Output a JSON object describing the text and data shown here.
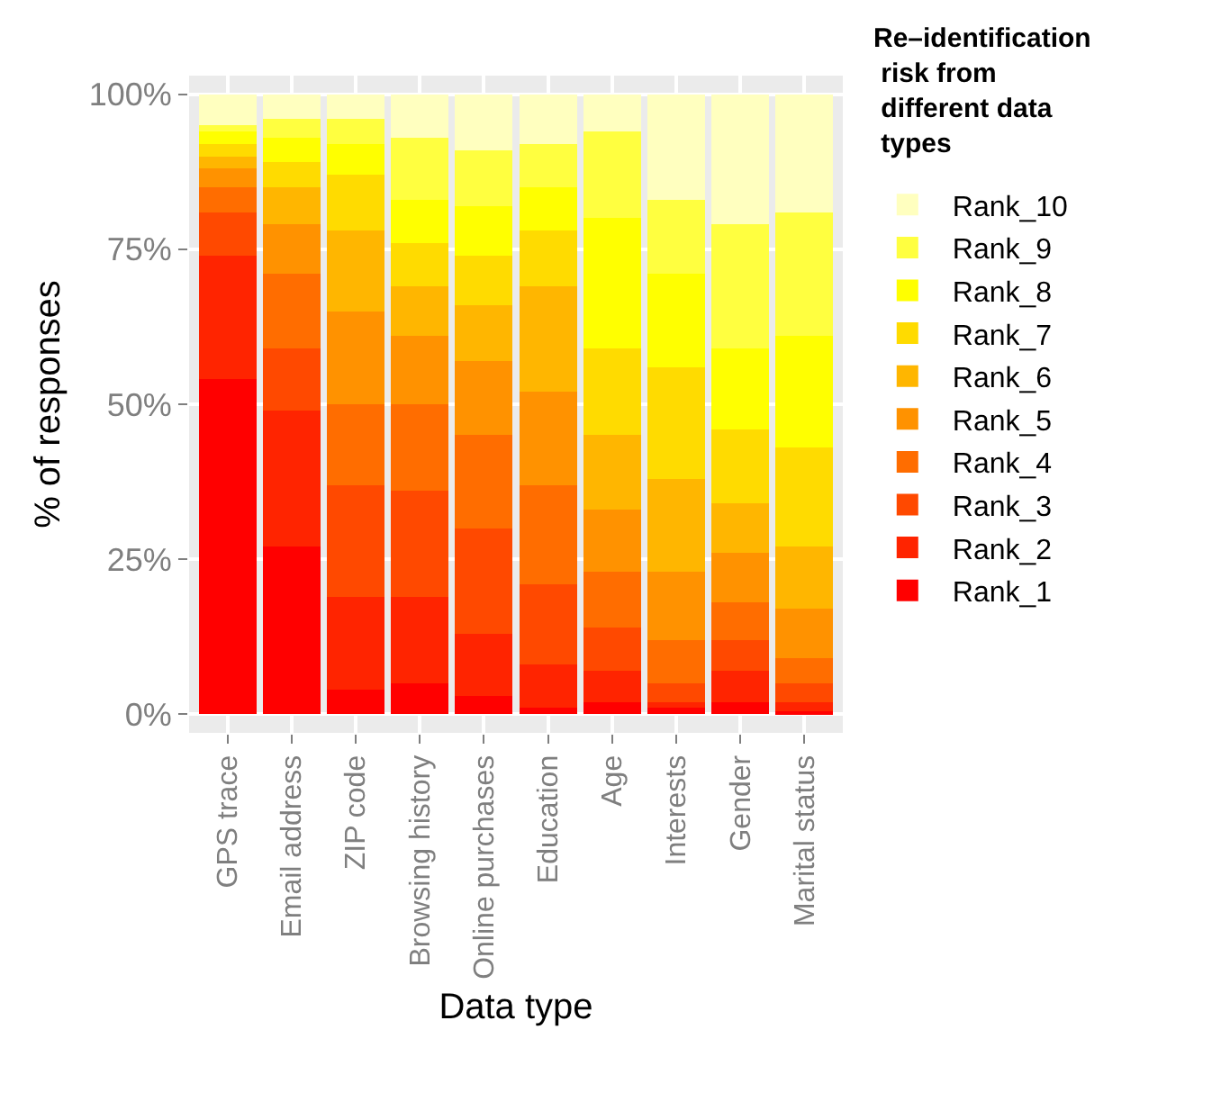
{
  "chart_data": {
    "type": "bar",
    "stacked": true,
    "xlabel": "Data type",
    "ylabel": "% of responses",
    "legend_title": "Re–identification\n risk from\n different data\n types",
    "legend": "right",
    "grid": true,
    "categories": [
      "GPS trace",
      "Email address",
      "ZIP code",
      "Browsing history",
      "Online purchases",
      "Education",
      "Age",
      "Interests",
      "Gender",
      "Marital status"
    ],
    "ylim": [
      -3,
      103
    ],
    "yticks": [
      {
        "value": 0,
        "label": "0%"
      },
      {
        "value": 25,
        "label": "25%"
      },
      {
        "value": 50,
        "label": "50%"
      },
      {
        "value": 75,
        "label": "75%"
      },
      {
        "value": 100,
        "label": "100%"
      }
    ],
    "series": [
      {
        "name": "Rank_1",
        "color": "#ff0000",
        "values": [
          54,
          27,
          4,
          5,
          3,
          1,
          2,
          1,
          2,
          0.5
        ]
      },
      {
        "name": "Rank_2",
        "color": "#ff2400",
        "values": [
          20,
          22,
          15,
          14,
          10,
          7,
          5,
          1,
          5,
          1.5
        ]
      },
      {
        "name": "Rank_3",
        "color": "#ff4900",
        "values": [
          7,
          10,
          18,
          17,
          17,
          13,
          7,
          3,
          5,
          3
        ]
      },
      {
        "name": "Rank_4",
        "color": "#ff6d00",
        "values": [
          4,
          12,
          13,
          14,
          15,
          16,
          9,
          7,
          6,
          4
        ]
      },
      {
        "name": "Rank_5",
        "color": "#ff9200",
        "values": [
          3,
          8,
          15,
          11,
          12,
          15,
          10,
          11,
          8,
          8
        ]
      },
      {
        "name": "Rank_6",
        "color": "#ffb600",
        "values": [
          2,
          6,
          13,
          8,
          9,
          17,
          12,
          15,
          8,
          10
        ]
      },
      {
        "name": "Rank_7",
        "color": "#ffdb00",
        "values": [
          2,
          4,
          9,
          7,
          8,
          9,
          14,
          18,
          12,
          16
        ]
      },
      {
        "name": "Rank_8",
        "color": "#ffff00",
        "values": [
          2,
          4,
          5,
          7,
          8,
          7,
          21,
          15,
          13,
          18
        ]
      },
      {
        "name": "Rank_9",
        "color": "#ffff40",
        "values": [
          1,
          3,
          4,
          10,
          9,
          7,
          14,
          12,
          20,
          20
        ]
      },
      {
        "name": "Rank_10",
        "color": "#ffffbf",
        "values": [
          5,
          4,
          4,
          7,
          9,
          8,
          6,
          17,
          21,
          19
        ]
      }
    ]
  }
}
